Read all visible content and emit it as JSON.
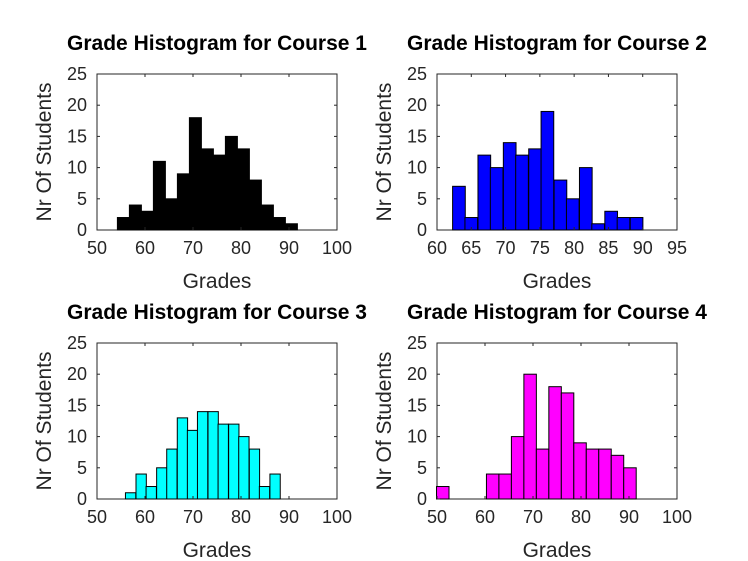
{
  "chart_data": [
    {
      "type": "bar",
      "title": "Grade Histogram for Course 1",
      "xlabel": "Grades",
      "ylabel": "Nr Of Students",
      "xlim": [
        50,
        100
      ],
      "ylim": [
        0,
        25
      ],
      "xticks": [
        50,
        60,
        70,
        80,
        90,
        100
      ],
      "yticks": [
        0,
        5,
        10,
        15,
        20,
        25
      ],
      "bar_width": 2.5,
      "color": "#000000",
      "x": [
        55.5,
        58,
        60.5,
        63,
        65.5,
        68,
        70.5,
        73,
        75.5,
        78,
        80.5,
        83,
        85.5,
        88,
        90.5,
        93
      ],
      "values": [
        2,
        4,
        3,
        11,
        5,
        9,
        18,
        13,
        12,
        15,
        13,
        8,
        4,
        2,
        1,
        0
      ]
    },
    {
      "type": "bar",
      "title": "Grade Histogram for Course 2",
      "xlabel": "Grades",
      "ylabel": "Nr Of Students",
      "xlim": [
        60,
        95
      ],
      "ylim": [
        0,
        25
      ],
      "xticks": [
        60,
        65,
        70,
        75,
        80,
        85,
        90,
        95
      ],
      "yticks": [
        0,
        5,
        10,
        15,
        20,
        25
      ],
      "bar_width": 1.85,
      "color": "#0000ff",
      "x": [
        63.2,
        65,
        66.9,
        68.7,
        70.6,
        72.4,
        74.3,
        76.1,
        78,
        79.8,
        81.7,
        83.5,
        85.4,
        87.2,
        89.1,
        90.9
      ],
      "values": [
        7,
        2,
        12,
        10,
        14,
        12,
        13,
        19,
        8,
        5,
        10,
        1,
        3,
        2,
        2,
        0
      ]
    },
    {
      "type": "bar",
      "title": "Grade Histogram for Course 3",
      "xlabel": "Grades",
      "ylabel": "Nr Of Students",
      "xlim": [
        50,
        100
      ],
      "ylim": [
        0,
        25
      ],
      "xticks": [
        50,
        60,
        70,
        80,
        90,
        100
      ],
      "yticks": [
        0,
        5,
        10,
        15,
        20,
        25
      ],
      "bar_width": 2.15,
      "color": "#00ffff",
      "x": [
        57,
        59.2,
        61.3,
        63.5,
        65.6,
        67.8,
        69.9,
        72,
        74.2,
        76.3,
        78.5,
        80.6,
        82.8,
        84.9,
        87.1,
        89.2
      ],
      "values": [
        1,
        4,
        2,
        5,
        8,
        13,
        11,
        14,
        14,
        12,
        12,
        10,
        8,
        2,
        4,
        0
      ]
    },
    {
      "type": "bar",
      "title": "Grade Histogram for Course 4",
      "xlabel": "Grades",
      "ylabel": "Nr Of Students",
      "xlim": [
        50,
        100
      ],
      "ylim": [
        0,
        25
      ],
      "xticks": [
        50,
        60,
        70,
        80,
        90,
        100
      ],
      "yticks": [
        0,
        5,
        10,
        15,
        20,
        25
      ],
      "bar_width": 2.6,
      "color": "#ff00ff",
      "x": [
        51.2,
        53.8,
        56.4,
        59,
        61.6,
        64.2,
        66.8,
        69.4,
        72,
        74.6,
        77.2,
        79.8,
        82.4,
        85,
        87.6,
        90.2
      ],
      "values": [
        2,
        0,
        0,
        0,
        4,
        4,
        10,
        20,
        8,
        18,
        17,
        9,
        8,
        8,
        7,
        5
      ]
    }
  ]
}
